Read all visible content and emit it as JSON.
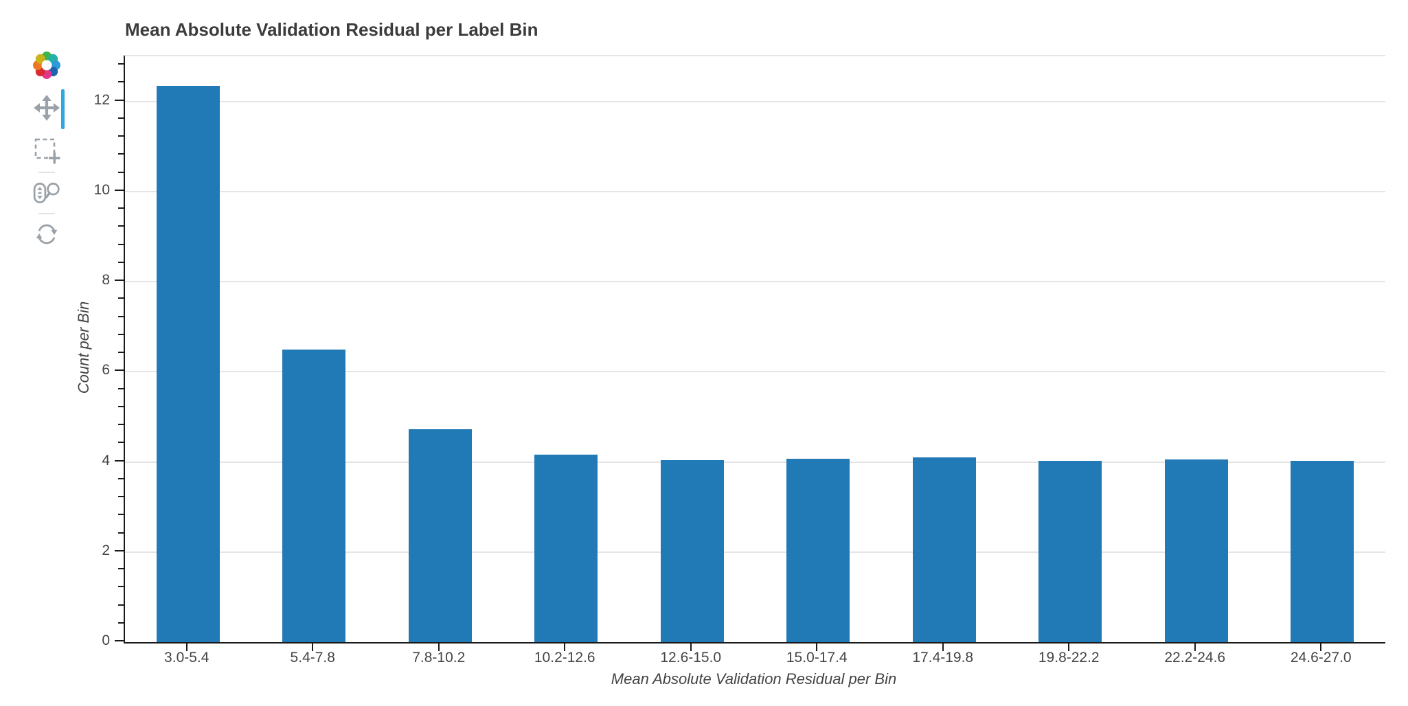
{
  "page_bg": "#ffffff",
  "chart_data": {
    "type": "bar",
    "title": "Mean Absolute Validation Residual per Label Bin",
    "xlabel": "Mean Absolute Validation Residual per Bin",
    "ylabel": "Count per Bin",
    "categories": [
      "3.0-5.4",
      "5.4-7.8",
      "7.8-10.2",
      "10.2-12.6",
      "12.6-15.0",
      "15.0-17.4",
      "17.4-19.8",
      "19.8-22.2",
      "22.2-24.6",
      "24.6-27.0"
    ],
    "values": [
      12.35,
      6.5,
      4.73,
      4.16,
      4.04,
      4.07,
      4.1,
      4.02,
      4.05,
      4.03
    ],
    "ylim": [
      0,
      13
    ],
    "y_major_ticks": [
      0,
      2,
      4,
      6,
      8,
      10,
      12
    ],
    "y_minor_step": 0.4,
    "bar_width_fraction": 0.5,
    "grid": true,
    "legend": "none",
    "bar_color": "#2179b5",
    "grid_color": "#e5e5e5",
    "axis_color": "#1a1a1a",
    "label_color": "#444444",
    "title_color": "#3c3c3c"
  },
  "toolbar": {
    "logo_icon": "bokeh-logo",
    "active_tool": "pan",
    "active_indicator_color": "#2ca9e1",
    "icon_color": "#9aa1a7",
    "tools": [
      {
        "id": "pan",
        "icon": "pan-arrows-icon",
        "active": true
      },
      {
        "id": "box-zoom",
        "icon": "box-zoom-icon",
        "active": false
      },
      {
        "id": "wheel-zoom",
        "icon": "wheel-zoom-icon",
        "active": false
      },
      {
        "id": "reset",
        "icon": "reset-icon",
        "active": false
      }
    ]
  }
}
